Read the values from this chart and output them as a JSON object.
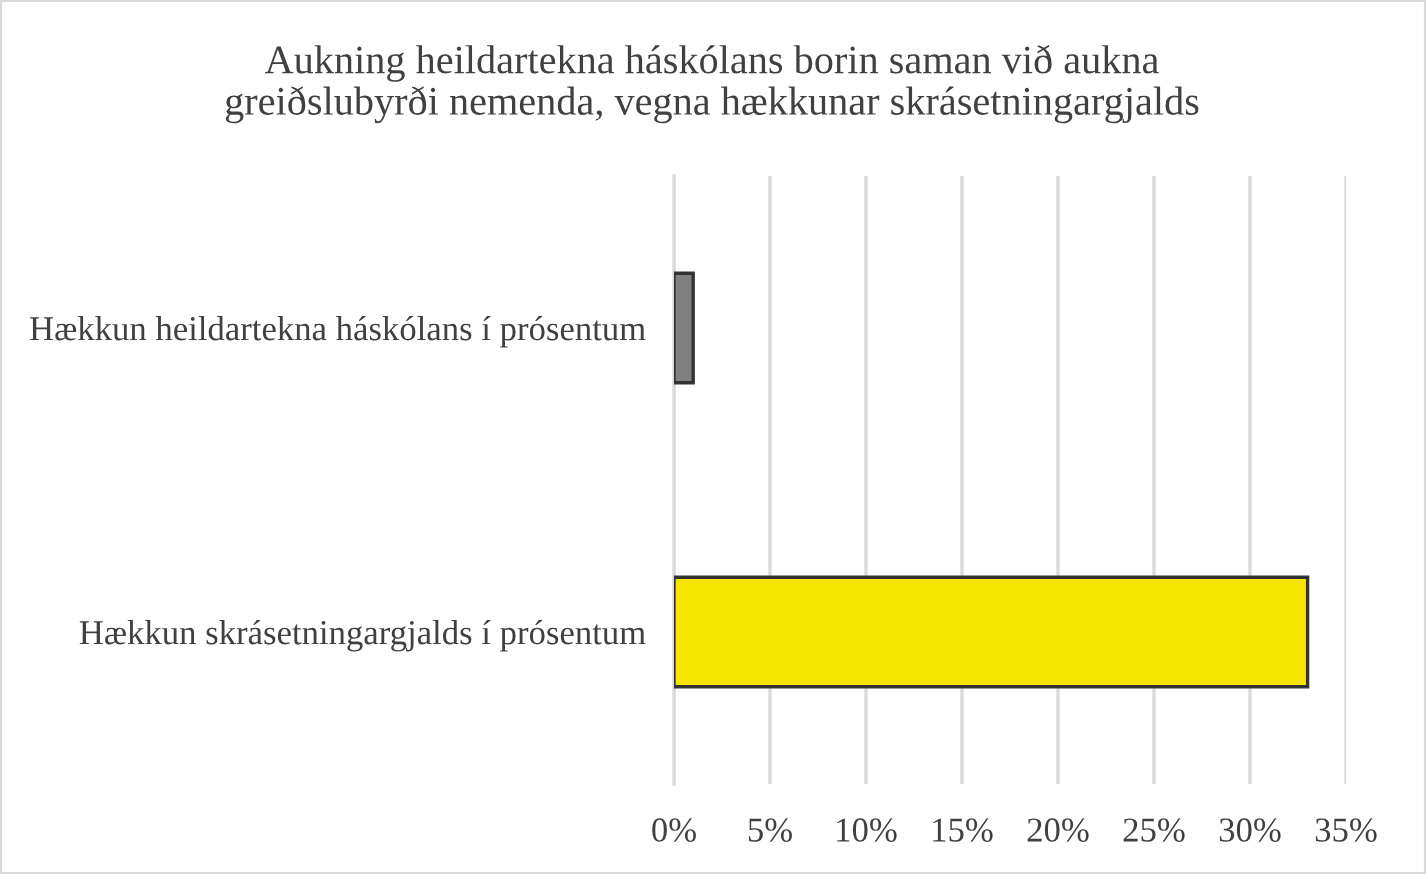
{
  "chart_data": {
    "type": "bar",
    "orientation": "horizontal",
    "title": "Aukning heildartekna háskólans borin saman við aukna greiðslubyrði nemenda, vegna hækkunar skrásetningargjalds",
    "categories": [
      "Hækkun heildartekna háskólans í prósentum",
      "Hækkun skrásetningargjalds í prósentum"
    ],
    "values": [
      1,
      33
    ],
    "colors": [
      "#808080",
      "#f7e600"
    ],
    "xlim": [
      0,
      35
    ],
    "xticks": [
      {
        "value": 0,
        "label": "0%"
      },
      {
        "value": 5,
        "label": "5%"
      },
      {
        "value": 10,
        "label": "10%"
      },
      {
        "value": 15,
        "label": "15%"
      },
      {
        "value": 20,
        "label": "20%"
      },
      {
        "value": 25,
        "label": "25%"
      },
      {
        "value": 30,
        "label": "30%"
      },
      {
        "value": 35,
        "label": "35%"
      }
    ],
    "grid": "x",
    "legend": false
  }
}
